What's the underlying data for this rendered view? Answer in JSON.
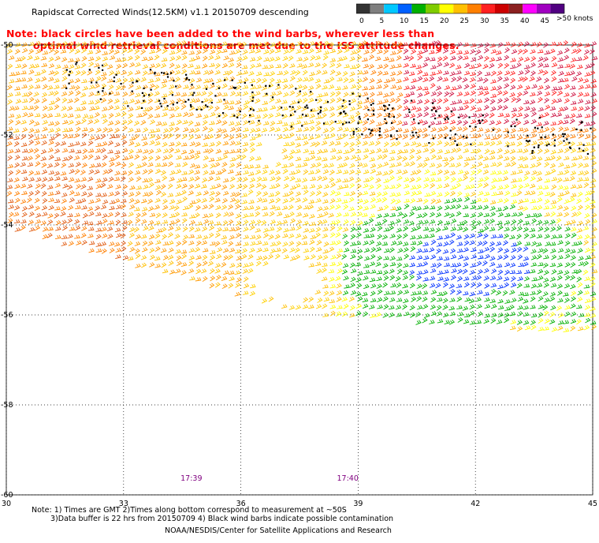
{
  "title": "Rapidscat Corrected Winds(12.5KM) v1.1 20150709 descending",
  "note_red": {
    "line1": "Note: black circles have been added to the wind barbs, wherever less than",
    "line2": "optimal wind retrieval conditions are met due to the ISS attitude changes."
  },
  "legend": {
    "labels": [
      "0",
      "5",
      "10",
      "15",
      "20",
      "25",
      "30",
      "35",
      "40",
      "45",
      ">50 knots"
    ],
    "colors": [
      "#333333",
      "#7f7f7f",
      "#00c8ff",
      "#0060ff",
      "#00b000",
      "#7fcc00",
      "#ffff00",
      "#ffc000",
      "#ff7f00",
      "#ff2020",
      "#cc0000",
      "#8b2020",
      "#ff00ff",
      "#a000c0",
      "#500080"
    ]
  },
  "map": {
    "lon_ticks": [
      "30",
      "33",
      "36",
      "39",
      "42",
      "45"
    ],
    "lat_ticks": [
      "-50",
      "-52",
      "-54",
      "-56",
      "-58",
      "-60"
    ],
    "lon_range": [
      30,
      45
    ],
    "lat_range": [
      -50,
      -60
    ],
    "time_labels": [
      {
        "text": "17:39",
        "lon": 34.7
      },
      {
        "text": "17:40",
        "lon": 38.7
      }
    ],
    "time_color": "#800080"
  },
  "footer": {
    "line1": "Note: 1) Times are GMT 2)Times along bottom correspond to measurement at ~50S",
    "line2": "3)Data buffer is 22 hrs from 20150709 4) Black wind barbs indicate possible contamination",
    "line3": "NOAA/NESDIS/Center for Satellite Applications and Research"
  }
}
